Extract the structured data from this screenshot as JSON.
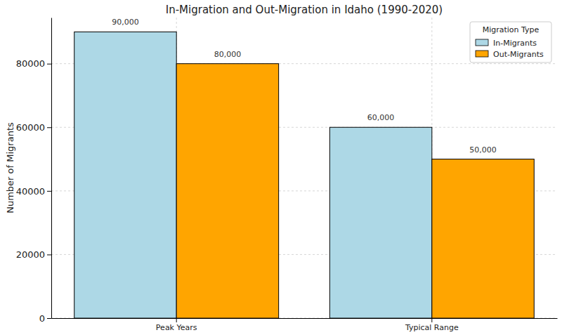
{
  "chart_data": {
    "type": "bar",
    "title": "In-Migration and Out-Migration in Idaho (1990-2020)",
    "y_label": "Number of Migrants",
    "legend_title": "Migration Type",
    "categories": [
      "Peak Years",
      "Typical Range"
    ],
    "series": [
      {
        "name": "In-Migrants",
        "color": "#add8e6",
        "values": [
          90000,
          60000
        ],
        "value_labels": [
          "90,000",
          "60,000"
        ]
      },
      {
        "name": "Out-Migrants",
        "color": "#ffa500",
        "values": [
          80000,
          50000
        ],
        "value_labels": [
          "80,000",
          "50,000"
        ]
      }
    ],
    "ylim": [
      0,
      94500
    ],
    "yticks": [
      0,
      20000,
      40000,
      60000,
      80000
    ],
    "grid": true,
    "legend": "upper right",
    "data_labels": true
  }
}
